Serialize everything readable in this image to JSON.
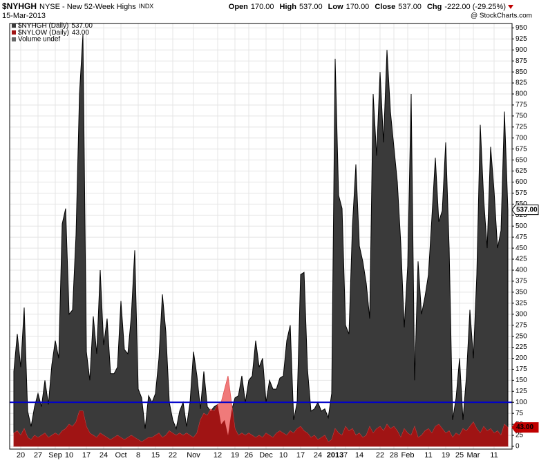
{
  "chart_data": {
    "type": "area",
    "title": "$NYHGH",
    "subtitle": "NYSE - New 52-Week Highs",
    "exchange": "INDX",
    "date": "15-Mar-2013",
    "source": "@ StockCharts.com",
    "stats": [
      {
        "name": "Open",
        "value": "170.00"
      },
      {
        "name": "High",
        "value": "537.00"
      },
      {
        "name": "Low",
        "value": "170.00"
      },
      {
        "name": "Close",
        "value": "537.00"
      },
      {
        "name": "Chg",
        "value": "-222.00 (-29.25%)"
      }
    ],
    "legend_extra": "Volume undef",
    "hline": {
      "value": 100,
      "color": "#0000cc"
    },
    "grid": true,
    "categories": [
      null,
      null,
      "20",
      null,
      null,
      null,
      null,
      "27",
      null,
      null,
      null,
      null,
      "Sep",
      null,
      null,
      null,
      "10",
      null,
      null,
      null,
      null,
      "17",
      null,
      null,
      null,
      null,
      "24",
      null,
      null,
      null,
      null,
      "Oct",
      null,
      null,
      null,
      null,
      "8",
      null,
      null,
      null,
      null,
      "15",
      null,
      null,
      null,
      null,
      "22",
      null,
      null,
      null,
      null,
      null,
      "Nov",
      null,
      null,
      null,
      null,
      null,
      null,
      "12",
      null,
      null,
      null,
      null,
      "19",
      null,
      null,
      null,
      "26",
      null,
      null,
      null,
      null,
      "Dec",
      null,
      null,
      null,
      null,
      "10",
      null,
      null,
      null,
      null,
      "17",
      null,
      null,
      null,
      null,
      "24",
      null,
      null,
      null,
      null,
      "2013",
      null,
      null,
      "7",
      null,
      null,
      null,
      "14",
      null,
      null,
      null,
      null,
      null,
      "22",
      null,
      null,
      null,
      "28",
      null,
      null,
      null,
      "Feb",
      null,
      null,
      null,
      null,
      null,
      "11",
      null,
      null,
      null,
      null,
      "19",
      null,
      null,
      null,
      "25",
      null,
      null,
      null,
      "Mar",
      null,
      null,
      null,
      null,
      null,
      "11",
      null,
      null,
      null,
      null
    ],
    "series": [
      {
        "name": "$NYHGH (Daily)",
        "last_label": "537.00",
        "color": "#3a3a3a",
        "values": [
          170,
          255,
          180,
          315,
          80,
          45,
          90,
          120,
          90,
          150,
          95,
          185,
          240,
          200,
          505,
          540,
          300,
          310,
          480,
          800,
          935,
          215,
          150,
          295,
          210,
          400,
          230,
          290,
          165,
          165,
          180,
          330,
          220,
          210,
          295,
          445,
          130,
          110,
          40,
          115,
          100,
          120,
          200,
          345,
          260,
          100,
          60,
          40,
          80,
          100,
          45,
          100,
          215,
          160,
          85,
          170,
          90,
          80,
          90,
          95,
          50,
          60,
          25,
          80,
          110,
          115,
          160,
          100,
          150,
          160,
          240,
          180,
          200,
          100,
          150,
          130,
          130,
          155,
          160,
          240,
          275,
          60,
          100,
          390,
          395,
          175,
          80,
          85,
          100,
          80,
          85,
          65,
          120,
          880,
          570,
          540,
          275,
          255,
          500,
          640,
          455,
          420,
          370,
          290,
          800,
          660,
          850,
          690,
          900,
          760,
          680,
          600,
          460,
          270,
          410,
          800,
          150,
          420,
          300,
          340,
          390,
          520,
          655,
          510,
          535,
          690,
          450,
          60,
          110,
          200,
          60,
          160,
          310,
          200,
          390,
          730,
          560,
          450,
          680,
          580,
          450,
          490,
          760,
          537
        ]
      },
      {
        "name": "$NYLOW (Daily)",
        "last_label": "43.00",
        "color": "#a01414",
        "values": [
          30,
          35,
          25,
          40,
          20,
          15,
          25,
          20,
          25,
          30,
          20,
          25,
          30,
          25,
          35,
          40,
          50,
          45,
          55,
          80,
          80,
          45,
          30,
          25,
          20,
          30,
          25,
          20,
          15,
          20,
          25,
          20,
          15,
          20,
          25,
          20,
          15,
          10,
          15,
          20,
          20,
          25,
          30,
          20,
          25,
          35,
          30,
          25,
          30,
          25,
          30,
          25,
          20,
          30,
          60,
          75,
          70,
          85,
          80,
          95,
          100,
          130,
          160,
          100,
          40,
          25,
          30,
          25,
          30,
          25,
          20,
          25,
          20,
          30,
          25,
          20,
          30,
          35,
          30,
          25,
          35,
          30,
          40,
          45,
          35,
          30,
          20,
          25,
          15,
          20,
          25,
          10,
          15,
          40,
          30,
          25,
          45,
          35,
          40,
          25,
          30,
          20,
          25,
          45,
          30,
          40,
          45,
          35,
          50,
          40,
          45,
          35,
          20,
          40,
          30,
          25,
          45,
          20,
          25,
          35,
          40,
          30,
          45,
          50,
          40,
          30,
          35,
          20,
          30,
          25,
          40,
          35,
          45,
          55,
          40,
          30,
          45,
          35,
          40,
          30,
          35,
          25,
          50,
          43
        ]
      }
    ],
    "ylim": [
      0,
      960
    ],
    "yticks": [
      0,
      25,
      50,
      75,
      100,
      125,
      150,
      175,
      200,
      225,
      250,
      275,
      300,
      325,
      350,
      375,
      400,
      425,
      450,
      475,
      500,
      525,
      550,
      575,
      600,
      625,
      650,
      675,
      700,
      725,
      750,
      775,
      800,
      825,
      850,
      875,
      900,
      925,
      950
    ]
  }
}
